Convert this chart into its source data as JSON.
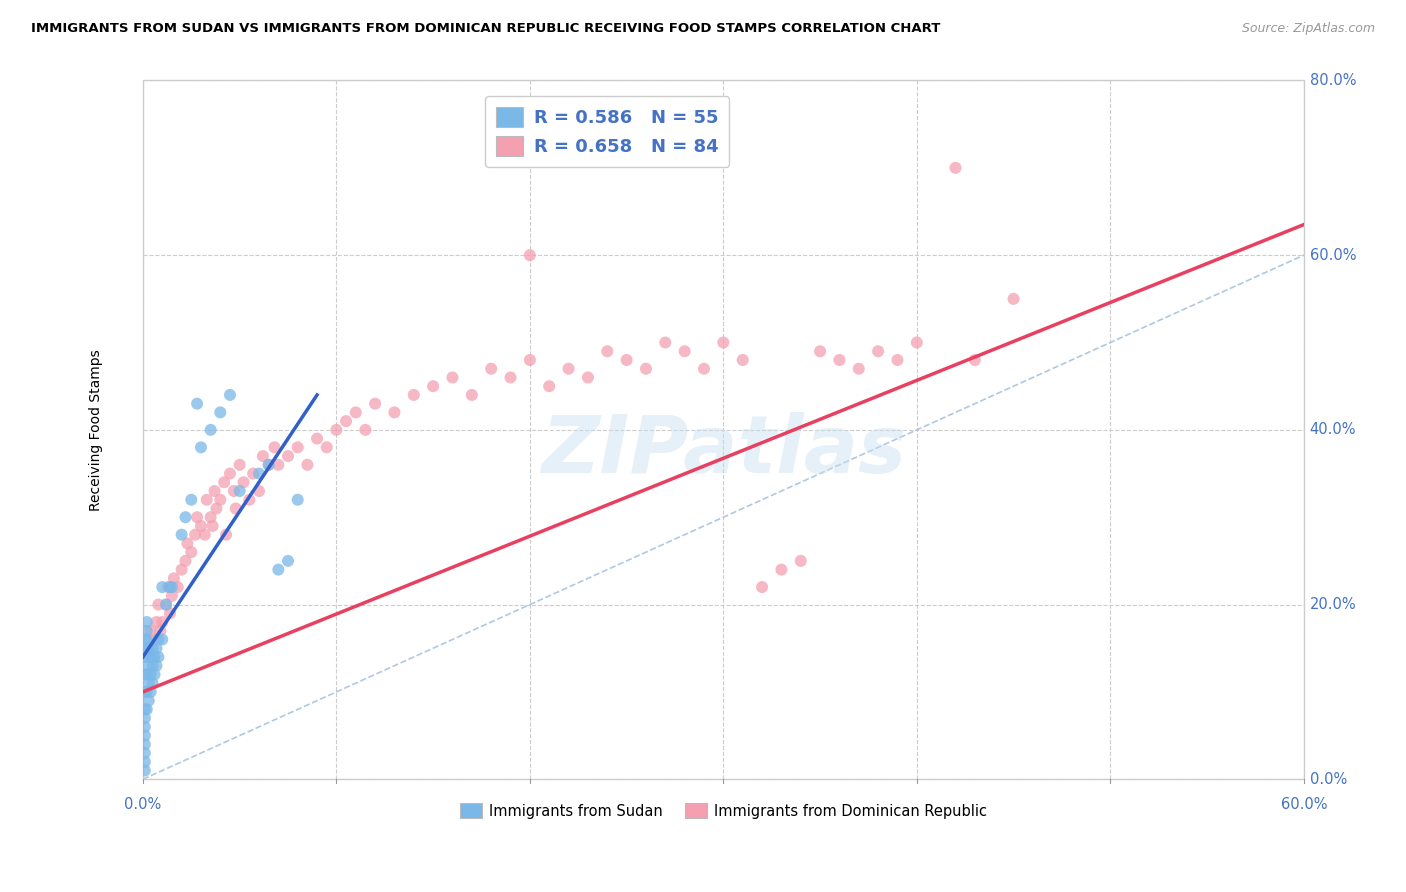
{
  "title": "IMMIGRANTS FROM SUDAN VS IMMIGRANTS FROM DOMINICAN REPUBLIC RECEIVING FOOD STAMPS CORRELATION CHART",
  "source": "Source: ZipAtlas.com",
  "ylabel": "Receiving Food Stamps",
  "xlim": [
    0.0,
    0.6
  ],
  "ylim": [
    0.0,
    0.8
  ],
  "sudan_color": "#7ab8e8",
  "dominican_color": "#f4a0b0",
  "sudan_line_color": "#3060c8",
  "dominican_line_color": "#e84060",
  "diagonal_color": "#b0c8e0",
  "watermark": "ZIPatlas",
  "legend_label_1": "R = 0.586   N = 55",
  "legend_label_2": "R = 0.658   N = 84",
  "legend_color_1": "#7ab8e8",
  "legend_color_2": "#f4a0b0",
  "legend_text_color": "#4472c4",
  "bottom_label_1": "Immigrants from Sudan",
  "bottom_label_2": "Immigrants from Dominican Republic",
  "ytick_labels": [
    "0.0%",
    "20.0%",
    "40.0%",
    "60.0%",
    "80.0%"
  ],
  "ytick_vals": [
    0.0,
    0.2,
    0.4,
    0.6,
    0.8
  ],
  "xtick_labels_edge": [
    "0.0%",
    "60.0%"
  ],
  "xtick_vals_edge": [
    0.0,
    0.6
  ],
  "sudan_points": [
    [
      0.001,
      0.02
    ],
    [
      0.001,
      0.03
    ],
    [
      0.001,
      0.04
    ],
    [
      0.001,
      0.05
    ],
    [
      0.001,
      0.06
    ],
    [
      0.001,
      0.07
    ],
    [
      0.001,
      0.08
    ],
    [
      0.001,
      0.1
    ],
    [
      0.001,
      0.12
    ],
    [
      0.001,
      0.14
    ],
    [
      0.001,
      0.15
    ],
    [
      0.001,
      0.16
    ],
    [
      0.002,
      0.08
    ],
    [
      0.002,
      0.1
    ],
    [
      0.002,
      0.12
    ],
    [
      0.002,
      0.14
    ],
    [
      0.002,
      0.16
    ],
    [
      0.002,
      0.17
    ],
    [
      0.002,
      0.18
    ],
    [
      0.003,
      0.09
    ],
    [
      0.003,
      0.11
    ],
    [
      0.003,
      0.13
    ],
    [
      0.003,
      0.15
    ],
    [
      0.004,
      0.1
    ],
    [
      0.004,
      0.12
    ],
    [
      0.004,
      0.14
    ],
    [
      0.005,
      0.11
    ],
    [
      0.005,
      0.13
    ],
    [
      0.005,
      0.15
    ],
    [
      0.006,
      0.12
    ],
    [
      0.006,
      0.14
    ],
    [
      0.007,
      0.13
    ],
    [
      0.007,
      0.15
    ],
    [
      0.008,
      0.14
    ],
    [
      0.008,
      0.16
    ],
    [
      0.01,
      0.16
    ],
    [
      0.01,
      0.22
    ],
    [
      0.012,
      0.2
    ],
    [
      0.014,
      0.22
    ],
    [
      0.015,
      0.22
    ],
    [
      0.02,
      0.28
    ],
    [
      0.022,
      0.3
    ],
    [
      0.025,
      0.32
    ],
    [
      0.028,
      0.43
    ],
    [
      0.03,
      0.38
    ],
    [
      0.035,
      0.4
    ],
    [
      0.04,
      0.42
    ],
    [
      0.045,
      0.44
    ],
    [
      0.05,
      0.33
    ],
    [
      0.06,
      0.35
    ],
    [
      0.065,
      0.36
    ],
    [
      0.07,
      0.24
    ],
    [
      0.075,
      0.25
    ],
    [
      0.08,
      0.32
    ],
    [
      0.001,
      0.01
    ]
  ],
  "dominican_points": [
    [
      0.003,
      0.15
    ],
    [
      0.004,
      0.17
    ],
    [
      0.005,
      0.14
    ],
    [
      0.006,
      0.16
    ],
    [
      0.007,
      0.18
    ],
    [
      0.008,
      0.2
    ],
    [
      0.009,
      0.17
    ],
    [
      0.01,
      0.18
    ],
    [
      0.012,
      0.2
    ],
    [
      0.013,
      0.22
    ],
    [
      0.014,
      0.19
    ],
    [
      0.015,
      0.21
    ],
    [
      0.016,
      0.23
    ],
    [
      0.018,
      0.22
    ],
    [
      0.02,
      0.24
    ],
    [
      0.022,
      0.25
    ],
    [
      0.023,
      0.27
    ],
    [
      0.025,
      0.26
    ],
    [
      0.027,
      0.28
    ],
    [
      0.028,
      0.3
    ],
    [
      0.03,
      0.29
    ],
    [
      0.032,
      0.28
    ],
    [
      0.033,
      0.32
    ],
    [
      0.035,
      0.3
    ],
    [
      0.036,
      0.29
    ],
    [
      0.037,
      0.33
    ],
    [
      0.038,
      0.31
    ],
    [
      0.04,
      0.32
    ],
    [
      0.042,
      0.34
    ],
    [
      0.043,
      0.28
    ],
    [
      0.045,
      0.35
    ],
    [
      0.047,
      0.33
    ],
    [
      0.048,
      0.31
    ],
    [
      0.05,
      0.36
    ],
    [
      0.052,
      0.34
    ],
    [
      0.055,
      0.32
    ],
    [
      0.057,
      0.35
    ],
    [
      0.06,
      0.33
    ],
    [
      0.062,
      0.37
    ],
    [
      0.065,
      0.36
    ],
    [
      0.068,
      0.38
    ],
    [
      0.07,
      0.36
    ],
    [
      0.075,
      0.37
    ],
    [
      0.08,
      0.38
    ],
    [
      0.085,
      0.36
    ],
    [
      0.09,
      0.39
    ],
    [
      0.095,
      0.38
    ],
    [
      0.1,
      0.4
    ],
    [
      0.105,
      0.41
    ],
    [
      0.11,
      0.42
    ],
    [
      0.115,
      0.4
    ],
    [
      0.12,
      0.43
    ],
    [
      0.13,
      0.42
    ],
    [
      0.14,
      0.44
    ],
    [
      0.15,
      0.45
    ],
    [
      0.16,
      0.46
    ],
    [
      0.17,
      0.44
    ],
    [
      0.18,
      0.47
    ],
    [
      0.19,
      0.46
    ],
    [
      0.2,
      0.48
    ],
    [
      0.21,
      0.45
    ],
    [
      0.22,
      0.47
    ],
    [
      0.23,
      0.46
    ],
    [
      0.24,
      0.49
    ],
    [
      0.25,
      0.48
    ],
    [
      0.26,
      0.47
    ],
    [
      0.27,
      0.5
    ],
    [
      0.28,
      0.49
    ],
    [
      0.29,
      0.47
    ],
    [
      0.3,
      0.5
    ],
    [
      0.31,
      0.48
    ],
    [
      0.32,
      0.22
    ],
    [
      0.33,
      0.24
    ],
    [
      0.34,
      0.25
    ],
    [
      0.35,
      0.49
    ],
    [
      0.36,
      0.48
    ],
    [
      0.37,
      0.47
    ],
    [
      0.38,
      0.49
    ],
    [
      0.39,
      0.48
    ],
    [
      0.4,
      0.5
    ],
    [
      0.42,
      0.7
    ],
    [
      0.43,
      0.48
    ],
    [
      0.45,
      0.55
    ],
    [
      0.2,
      0.6
    ]
  ],
  "sudan_line_x": [
    0.0,
    0.09
  ],
  "sudan_line_y": [
    0.14,
    0.44
  ],
  "dominican_line_x": [
    0.0,
    0.6
  ],
  "dominican_line_y": [
    0.1,
    0.635
  ]
}
